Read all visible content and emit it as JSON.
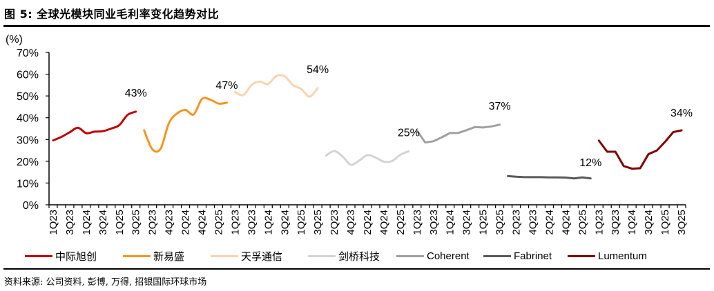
{
  "header": {
    "title": "图 5: 全球光模块同业毛利率变化趋势对比"
  },
  "footer": {
    "source": "资料来源: 公司资料, 彭博, 万得, 招银国际环球市场"
  },
  "chart_data": {
    "type": "line",
    "title": "全球光模块同业毛利率变化趋势对比",
    "xlabel": "",
    "ylabel": "(%)",
    "ylim": [
      0,
      70
    ],
    "yticks": [
      "0%",
      "10%",
      "20%",
      "30%",
      "40%",
      "50%",
      "60%",
      "70%"
    ],
    "grid": false,
    "legend_position": "bottom",
    "quarters_per_company": [
      "1Q23",
      "2Q23",
      "3Q23",
      "4Q23",
      "1Q24",
      "2Q24",
      "3Q24",
      "4Q24",
      "1Q25",
      "2Q25",
      "3Q25"
    ],
    "xtick_labels": [
      "1Q23",
      "3Q23",
      "1Q24",
      "3Q24",
      "1Q25",
      "3Q25",
      "2Q23",
      "4Q23",
      "2Q24",
      "4Q24",
      "2Q25",
      "1Q23",
      "3Q23",
      "1Q24",
      "3Q24",
      "1Q25",
      "3Q25",
      "2Q23",
      "4Q23",
      "2Q24",
      "4Q24",
      "2Q25",
      "1Q23",
      "3Q23",
      "1Q24",
      "3Q24",
      "1Q25",
      "3Q25",
      "2Q23",
      "4Q23",
      "2Q24",
      "4Q24",
      "2Q25",
      "1Q23",
      "3Q23",
      "1Q24",
      "3Q24",
      "1Q25",
      "3Q25"
    ],
    "series": [
      {
        "name": "中际旭创",
        "color": "#C00000",
        "smooth": true,
        "cjk": true,
        "values": [
          29.6,
          31.2,
          33.3,
          35.4,
          32.9,
          33.6,
          33.8,
          35.0,
          36.6,
          41.3,
          42.8
        ],
        "end_label": "43%",
        "label_offset": [
          0,
          -22
        ]
      },
      {
        "name": "新易盛",
        "color": "#F7931E",
        "smooth": true,
        "cjk": true,
        "values": [
          34.2,
          25.5,
          25.8,
          37.5,
          42.0,
          43.6,
          41.5,
          48.6,
          48.3,
          46.5,
          46.9
        ],
        "end_label": "47%",
        "label_offset": [
          0,
          -20
        ]
      },
      {
        "name": "天孚通信",
        "color": "#F9D3B2",
        "smooth": true,
        "cjk": true,
        "values": [
          51.8,
          50.4,
          55.0,
          56.6,
          55.5,
          59.2,
          59.0,
          55.0,
          53.2,
          49.7,
          53.6
        ],
        "end_label": "54%",
        "label_offset": [
          0,
          -22
        ]
      },
      {
        "name": "剑桥科技",
        "color": "#D4D4D4",
        "smooth": true,
        "cjk": true,
        "values": [
          22.6,
          24.7,
          22.2,
          18.4,
          20.3,
          22.8,
          21.7,
          19.8,
          20.1,
          23.0,
          24.6
        ],
        "end_label": "25%",
        "label_offset": [
          0,
          -22
        ]
      },
      {
        "name": "Coherent",
        "color": "#A0A0A0",
        "smooth": false,
        "cjk": false,
        "values": [
          34.1,
          28.6,
          29.2,
          31.0,
          33.0,
          33.0,
          34.3,
          35.7,
          35.5,
          36.0,
          36.8
        ],
        "end_label": "37%",
        "label_offset": [
          0,
          -22
        ]
      },
      {
        "name": "Fabrinet",
        "color": "#595959",
        "smooth": false,
        "cjk": false,
        "values": [
          13.2,
          12.9,
          12.7,
          12.7,
          12.7,
          12.6,
          12.6,
          12.5,
          12.1,
          12.6,
          12.1
        ],
        "end_label": "12%",
        "label_offset": [
          0,
          -18
        ]
      },
      {
        "name": "Lumentum",
        "color": "#7F0000",
        "smooth": false,
        "cjk": false,
        "values": [
          29.5,
          24.4,
          24.4,
          17.8,
          16.6,
          16.8,
          23.3,
          24.9,
          28.9,
          33.4,
          34.2
        ],
        "end_label": "34%",
        "label_offset": [
          0,
          -20
        ]
      }
    ]
  }
}
